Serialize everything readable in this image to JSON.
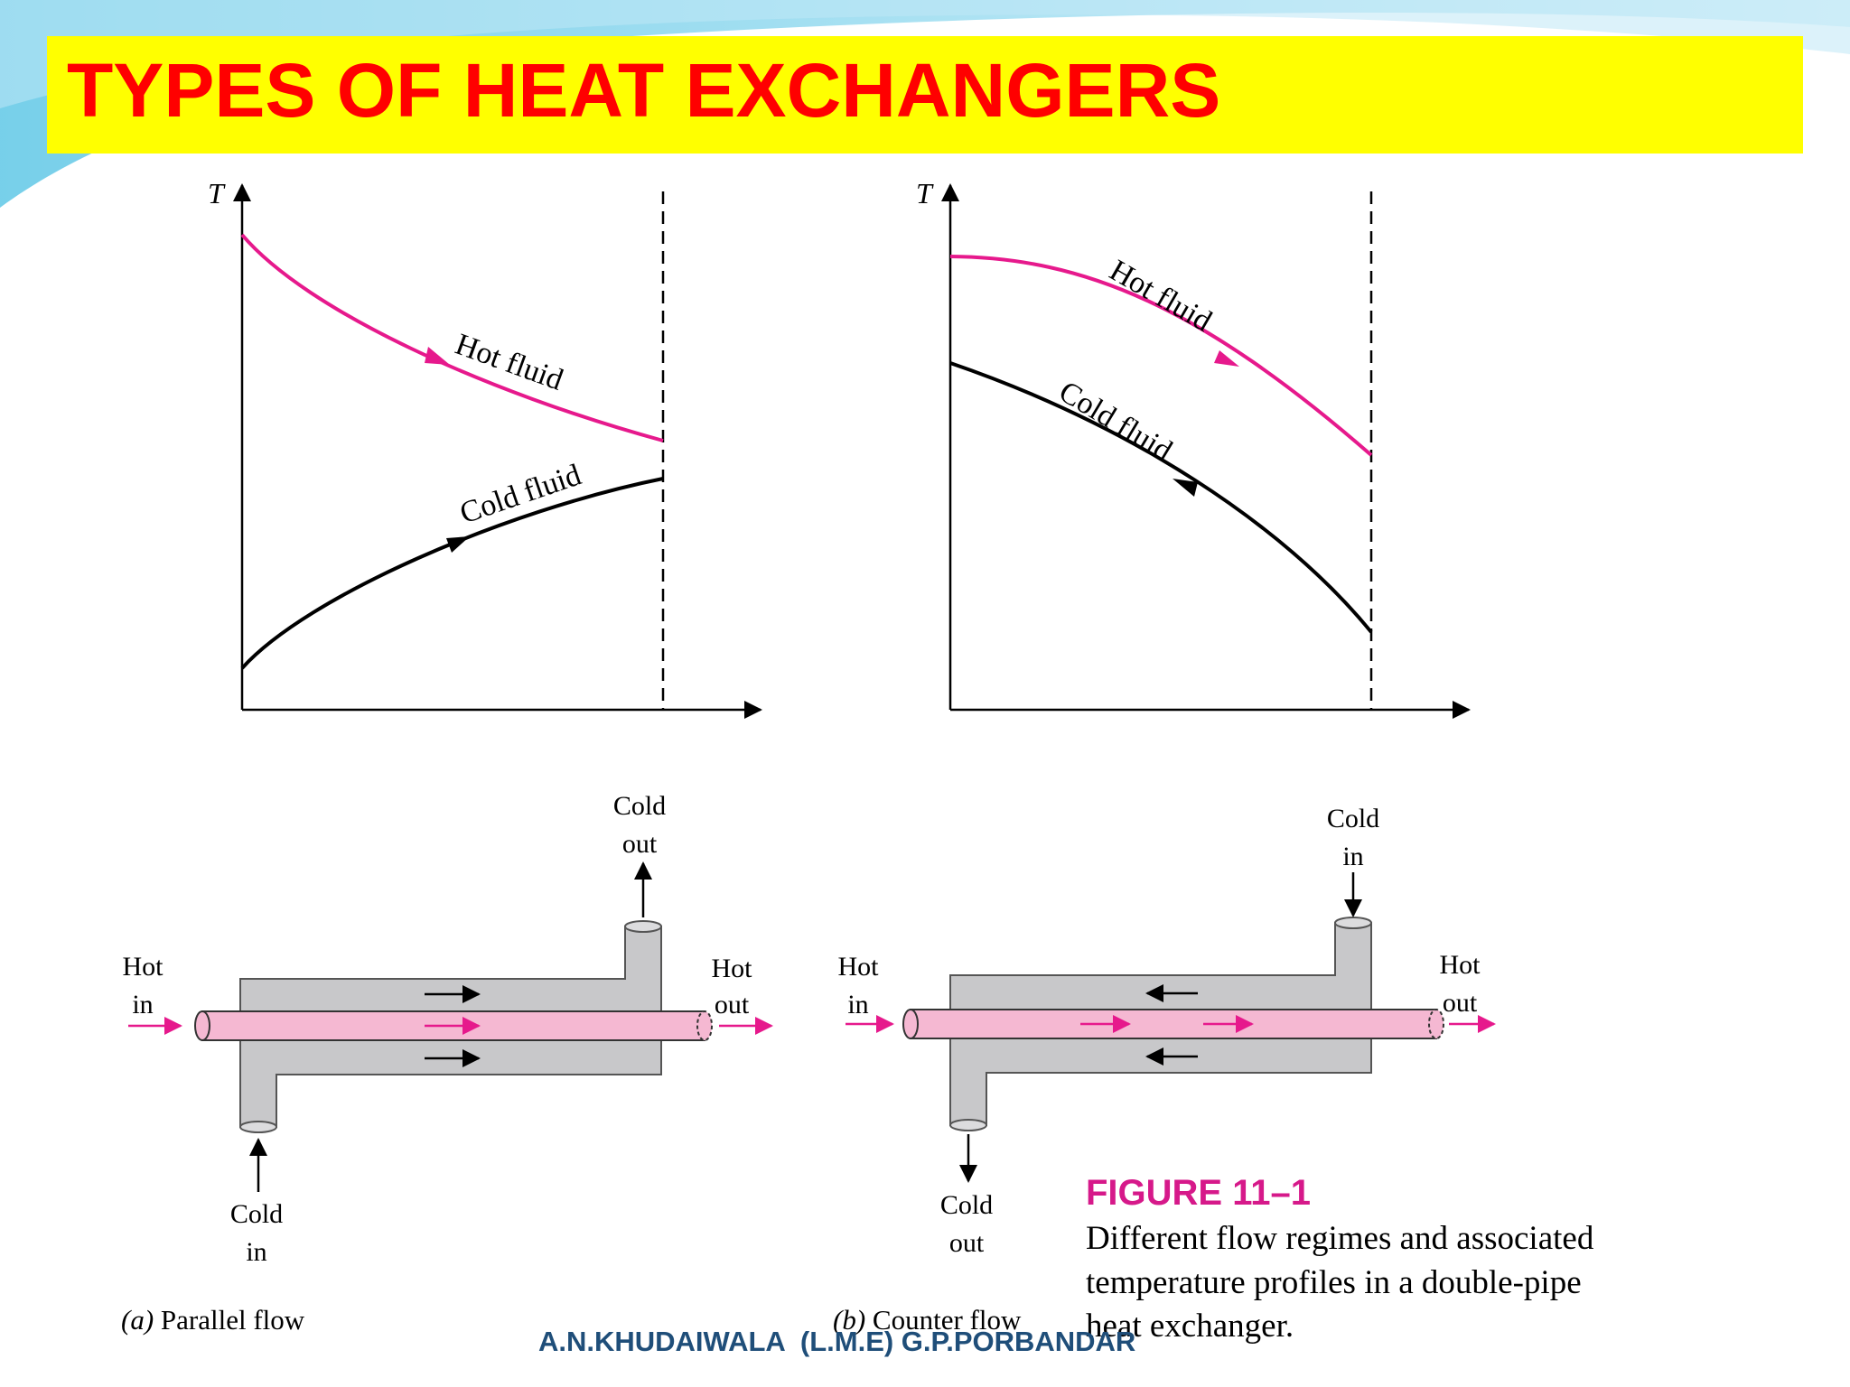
{
  "slide": {
    "title": "TYPES OF HEAT EXCHANGERS",
    "footer": "A.N.KHUDAIWALA  (L.M.E) G.P.PORBANDAR",
    "colors": {
      "title_bg": "#ffff00",
      "title_text": "#ff0000",
      "hot": "#e6198c",
      "pipe": "#f5b8d2",
      "shell": "#c8c8ca",
      "figure_label": "#d6198a",
      "footer": "#1f4e79"
    }
  },
  "figure": {
    "label": "FIGURE 11–1",
    "caption_lines": [
      "Different flow regimes and associated",
      "temperature profiles in a double-pipe",
      "heat exchanger."
    ],
    "panels": [
      {
        "axis_label": "T",
        "hot_label": "Hot fluid",
        "cold_label": "Cold fluid",
        "caption_letter": "(a)",
        "caption_text": " Parallel flow",
        "labels": {
          "hot_in": [
            "Hot",
            "in"
          ],
          "hot_out": [
            "Hot",
            "out"
          ],
          "cold_top": [
            "Cold",
            "out"
          ],
          "cold_bottom": [
            "Cold",
            "in"
          ]
        }
      },
      {
        "axis_label": "T",
        "hot_label": "Hot fluid",
        "cold_label": "Cold fluid",
        "caption_letter": "(b)",
        "caption_text": " Counter flow",
        "labels": {
          "hot_in": [
            "Hot",
            "in"
          ],
          "hot_out": [
            "Hot",
            "out"
          ],
          "cold_top": [
            "Cold",
            "in"
          ],
          "cold_bottom": [
            "Cold",
            "out"
          ]
        }
      }
    ]
  }
}
